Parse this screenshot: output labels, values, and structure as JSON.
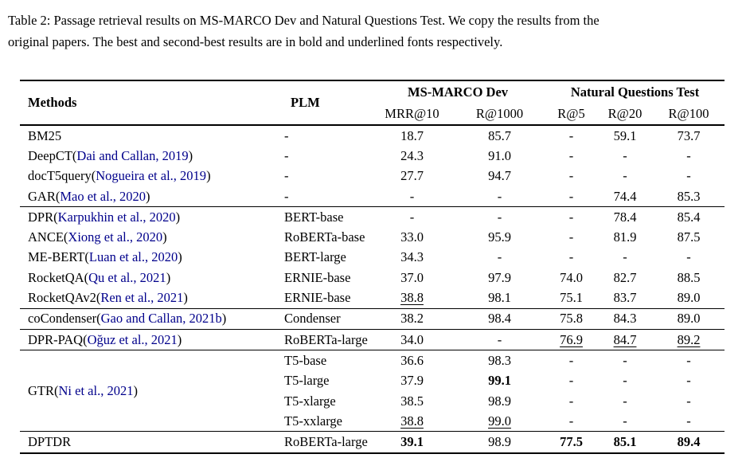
{
  "caption": {
    "line1": "Table 2: Passage retrieval results on MS-MARCO Dev and Natural Questions Test. We copy the results from the",
    "line2": "original papers. The best and second-best results are in bold and underlined fonts respectively."
  },
  "table": {
    "colors": {
      "citation": "#00008B",
      "text": "#000000"
    },
    "header": {
      "methods": "Methods",
      "plm": "PLM",
      "group1": "MS-MARCO Dev",
      "group2": "Natural Questions Test",
      "subcols": [
        "MRR@10",
        "R@1000",
        "R@5",
        "R@20",
        "R@100"
      ]
    },
    "groups": [
      {
        "rows": [
          {
            "pre": "BM25",
            "cite": "",
            "post": "",
            "plm": "-",
            "vals": [
              "18.7",
              "85.7",
              "-",
              "59.1",
              "73.7"
            ],
            "styles": [
              "",
              "",
              "",
              "",
              ""
            ]
          },
          {
            "pre": "DeepCT(",
            "cite": "Dai and Callan, 2019",
            "post": ")",
            "plm": "-",
            "vals": [
              "24.3",
              "91.0",
              "-",
              "-",
              "-"
            ],
            "styles": [
              "",
              "",
              "",
              "",
              ""
            ]
          },
          {
            "pre": "docT5query(",
            "cite": "Nogueira et al., 2019",
            "post": ")",
            "plm": "-",
            "vals": [
              "27.7",
              "94.7",
              "-",
              "-",
              "-"
            ],
            "styles": [
              "",
              "",
              "",
              "",
              ""
            ]
          },
          {
            "pre": "GAR(",
            "cite": "Mao et al., 2020",
            "post": ")",
            "plm": "-",
            "vals": [
              "-",
              "-",
              "-",
              "74.4",
              "85.3"
            ],
            "styles": [
              "",
              "",
              "",
              "",
              ""
            ]
          }
        ]
      },
      {
        "rows": [
          {
            "pre": "DPR(",
            "cite": "Karpukhin et al., 2020",
            "post": ")",
            "plm": "BERT-base",
            "vals": [
              "-",
              "-",
              "-",
              "78.4",
              "85.4"
            ],
            "styles": [
              "",
              "",
              "",
              "",
              ""
            ]
          },
          {
            "pre": "ANCE(",
            "cite": "Xiong et al., 2020",
            "post": ")",
            "plm": "RoBERTa-base",
            "vals": [
              "33.0",
              "95.9",
              "-",
              "81.9",
              "87.5"
            ],
            "styles": [
              "",
              "",
              "",
              "",
              ""
            ]
          },
          {
            "pre": "ME-BERT(",
            "cite": "Luan et al., 2020",
            "post": ")",
            "plm": "BERT-large",
            "vals": [
              "34.3",
              "-",
              "-",
              "-",
              "-"
            ],
            "styles": [
              "",
              "",
              "",
              "",
              ""
            ]
          },
          {
            "pre": "RocketQA(",
            "cite": "Qu et al., 2021",
            "post": ")",
            "plm": "ERNIE-base",
            "vals": [
              "37.0",
              "97.9",
              "74.0",
              "82.7",
              "88.5"
            ],
            "styles": [
              "",
              "",
              "",
              "",
              ""
            ]
          },
          {
            "pre": "RocketQAv2(",
            "cite": "Ren et al., 2021",
            "post": ")",
            "plm": "ERNIE-base",
            "vals": [
              "38.8",
              "98.1",
              "75.1",
              "83.7",
              "89.0"
            ],
            "styles": [
              "u",
              "",
              "",
              "",
              ""
            ]
          }
        ]
      },
      {
        "rows": [
          {
            "pre": "coCondenser(",
            "cite": "Gao and Callan, 2021b",
            "post": ")",
            "plm": "Condenser",
            "vals": [
              "38.2",
              "98.4",
              "75.8",
              "84.3",
              "89.0"
            ],
            "styles": [
              "",
              "",
              "",
              "",
              ""
            ]
          }
        ]
      },
      {
        "rows": [
          {
            "pre": "DPR-PAQ(",
            "cite": "Oğuz et al., 2021",
            "post": ")",
            "plm": "RoBERTa-large",
            "vals": [
              "34.0",
              "-",
              "76.9",
              "84.7",
              "89.2"
            ],
            "styles": [
              "",
              "",
              "u",
              "u",
              "u"
            ]
          }
        ]
      },
      {
        "merged": true,
        "method": {
          "pre": "GTR(",
          "cite": "Ni et al., 2021",
          "post": ")"
        },
        "rows": [
          {
            "plm": "T5-base",
            "vals": [
              "36.6",
              "98.3",
              "-",
              "-",
              "-"
            ],
            "styles": [
              "",
              "",
              "",
              "",
              ""
            ]
          },
          {
            "plm": "T5-large",
            "vals": [
              "37.9",
              "99.1",
              "-",
              "-",
              "-"
            ],
            "styles": [
              "",
              "b",
              "",
              "",
              ""
            ]
          },
          {
            "plm": "T5-xlarge",
            "vals": [
              "38.5",
              "98.9",
              "-",
              "-",
              "-"
            ],
            "styles": [
              "",
              "",
              "",
              "",
              ""
            ]
          },
          {
            "plm": "T5-xxlarge",
            "vals": [
              "38.8",
              "99.0",
              "-",
              "-",
              "-"
            ],
            "styles": [
              "u",
              "u",
              "",
              "",
              ""
            ]
          }
        ]
      },
      {
        "rows": [
          {
            "pre": "DPTDR",
            "cite": "",
            "post": "",
            "plm": "RoBERTa-large",
            "vals": [
              "39.1",
              "98.9",
              "77.5",
              "85.1",
              "89.4"
            ],
            "styles": [
              "b",
              "",
              "b",
              "b",
              "b"
            ]
          }
        ]
      }
    ]
  }
}
